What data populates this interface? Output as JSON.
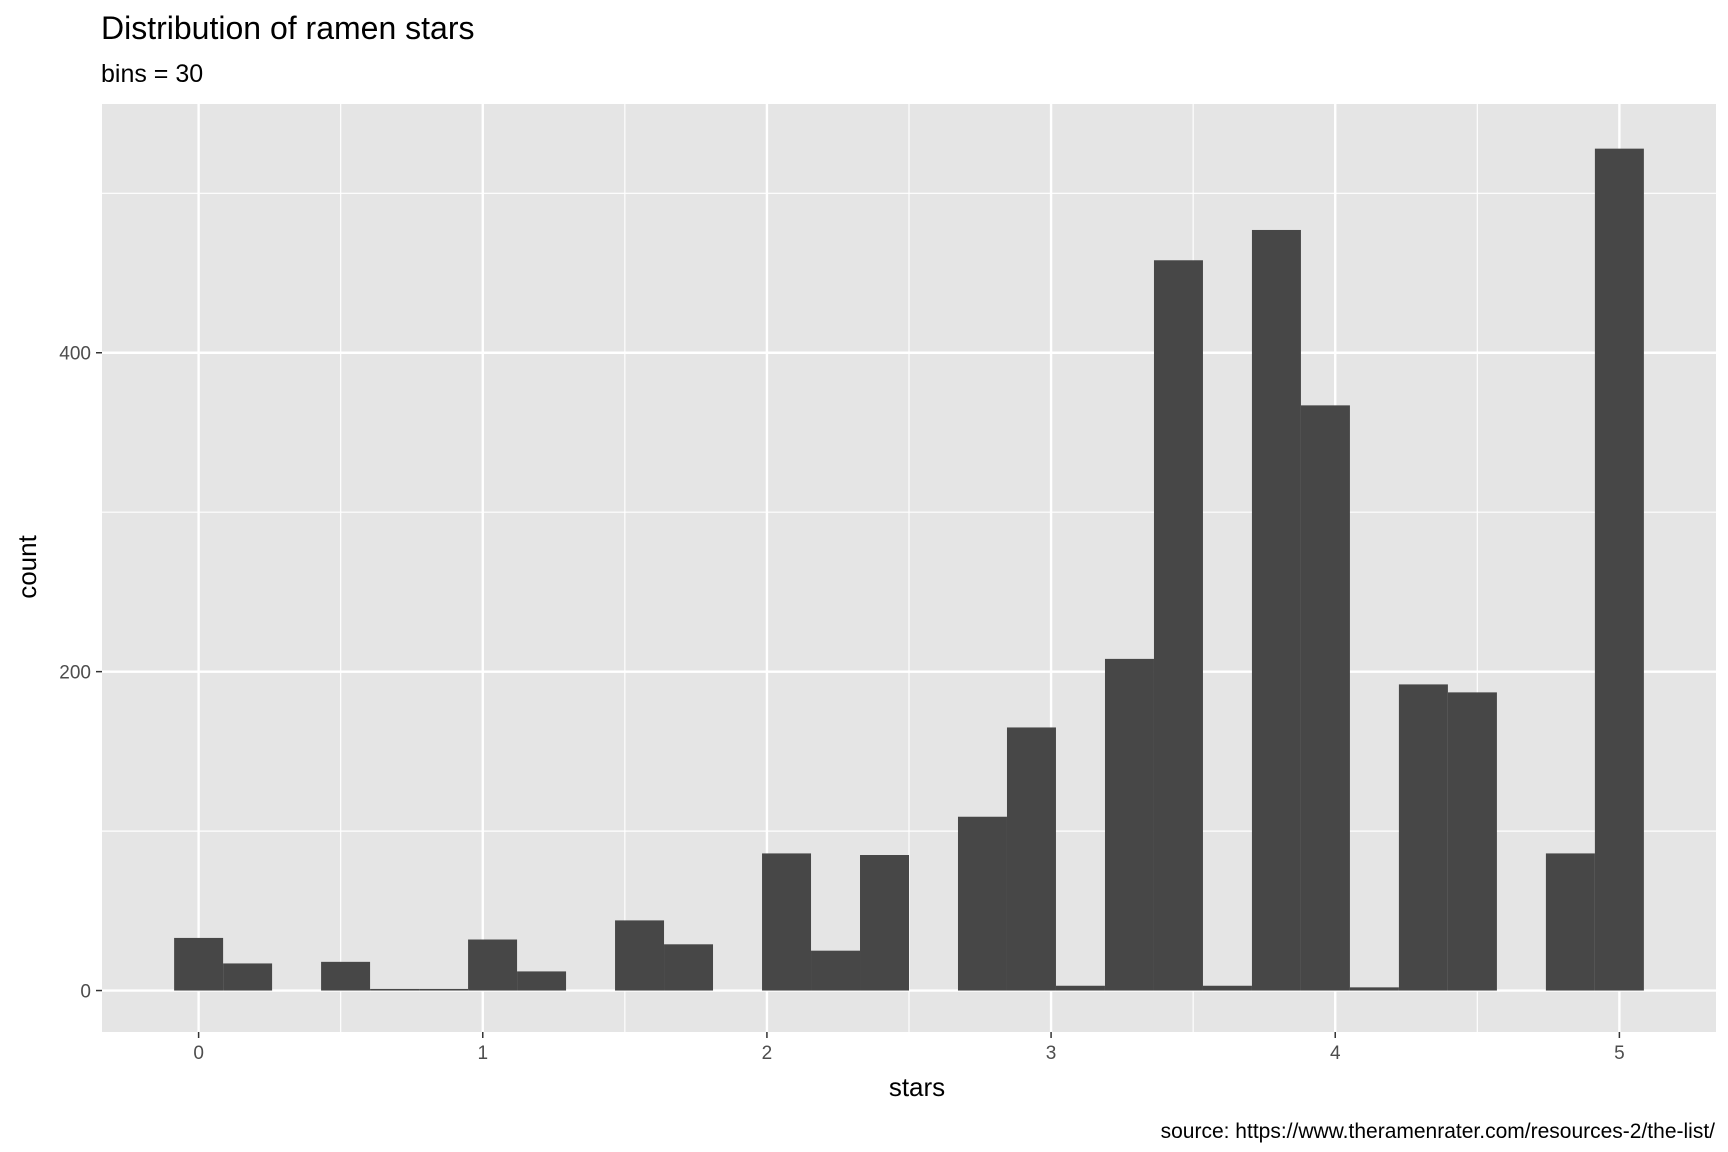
{
  "chart_data": {
    "type": "bar",
    "title": "Distribution of ramen stars",
    "subtitle": "bins = 30",
    "xlabel": "stars",
    "ylabel": "count",
    "caption": "source: https://www.theramenrater.com/resources-2/the-list/",
    "bin_width": 0.1724,
    "x_ticks": [
      0,
      1,
      2,
      3,
      4,
      5
    ],
    "x_tick_labels": [
      "0",
      "1",
      "2",
      "3",
      "4",
      "5"
    ],
    "y_ticks": [
      0,
      200,
      400
    ],
    "y_tick_labels": [
      "0",
      "200",
      "400"
    ],
    "xlim": [
      -0.34,
      5.34
    ],
    "ylim": [
      -26,
      556
    ],
    "bar_color": "#474747",
    "panel_color": "#e5e5e5",
    "grid": true,
    "bins": [
      {
        "x": 0.0,
        "count": 33
      },
      {
        "x": 0.1724,
        "count": 17
      },
      {
        "x": 0.3448,
        "count": 0
      },
      {
        "x": 0.5172,
        "count": 18
      },
      {
        "x": 0.6897,
        "count": 1
      },
      {
        "x": 0.8621,
        "count": 1
      },
      {
        "x": 1.0345,
        "count": 32
      },
      {
        "x": 1.2069,
        "count": 12
      },
      {
        "x": 1.3793,
        "count": 0
      },
      {
        "x": 1.5517,
        "count": 44
      },
      {
        "x": 1.7241,
        "count": 29
      },
      {
        "x": 1.8966,
        "count": 0
      },
      {
        "x": 2.069,
        "count": 86
      },
      {
        "x": 2.2414,
        "count": 25
      },
      {
        "x": 2.4138,
        "count": 85
      },
      {
        "x": 2.5862,
        "count": 0
      },
      {
        "x": 2.7586,
        "count": 109
      },
      {
        "x": 2.931,
        "count": 165
      },
      {
        "x": 3.1034,
        "count": 3
      },
      {
        "x": 3.2759,
        "count": 208
      },
      {
        "x": 3.4483,
        "count": 458
      },
      {
        "x": 3.6207,
        "count": 3
      },
      {
        "x": 3.7931,
        "count": 477
      },
      {
        "x": 3.9655,
        "count": 367
      },
      {
        "x": 4.1379,
        "count": 2
      },
      {
        "x": 4.3103,
        "count": 192
      },
      {
        "x": 4.4828,
        "count": 187
      },
      {
        "x": 4.6552,
        "count": 0
      },
      {
        "x": 4.8276,
        "count": 86
      },
      {
        "x": 5.0,
        "count": 528
      }
    ]
  }
}
